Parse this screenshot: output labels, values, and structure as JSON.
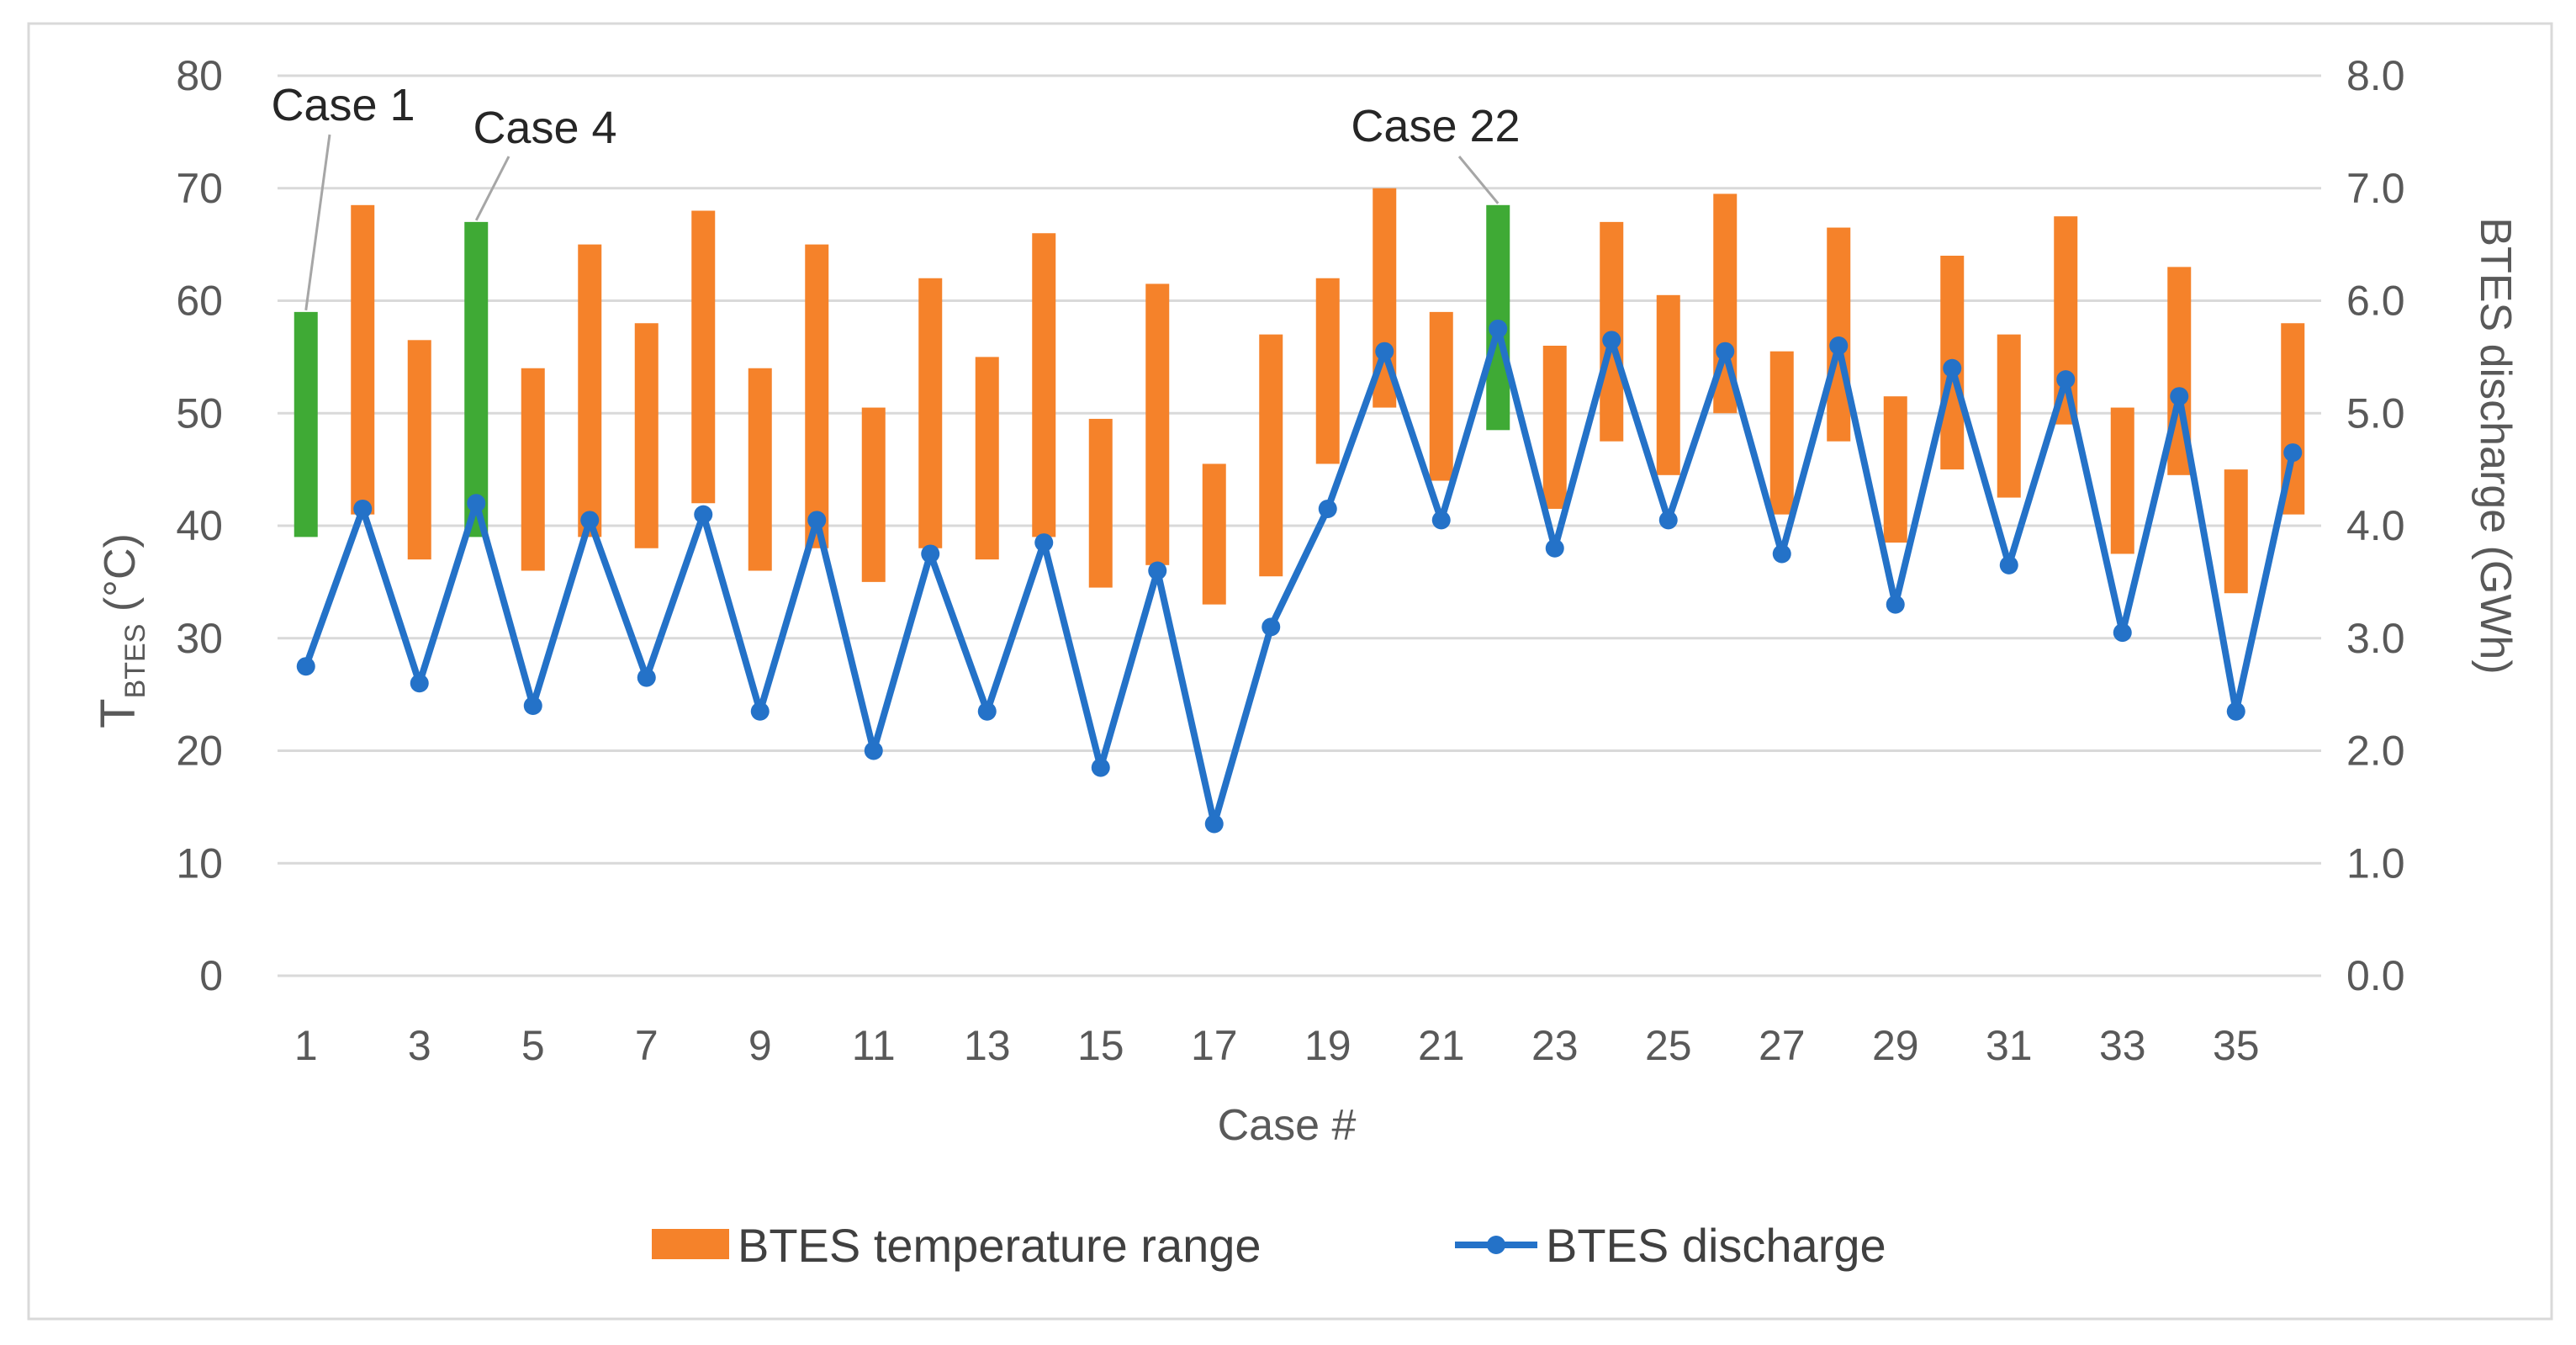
{
  "chart_data": {
    "type": "floating-bar + line (dual axis)",
    "x_axis": {
      "title": "Case #",
      "range": [
        1,
        36
      ],
      "tick_labels": [
        "1",
        "3",
        "5",
        "7",
        "9",
        "11",
        "13",
        "15",
        "17",
        "19",
        "21",
        "23",
        "25",
        "27",
        "29",
        "31",
        "33",
        "35"
      ]
    },
    "y_left": {
      "title_main": "T",
      "title_sub": "BTES",
      "title_unit": " (°C)",
      "range": [
        0,
        80
      ],
      "tick_labels": [
        "0",
        "10",
        "20",
        "30",
        "40",
        "50",
        "60",
        "70",
        "80"
      ]
    },
    "y_right": {
      "title": "BTES discharge (GWh)",
      "range": [
        0,
        8
      ],
      "tick_labels": [
        "0.0",
        "1.0",
        "2.0",
        "3.0",
        "4.0",
        "5.0",
        "6.0",
        "7.0",
        "8.0"
      ]
    },
    "series": [
      {
        "name": "BTES temperature range",
        "kind": "range-bar",
        "axis": "left",
        "color": "#F5822A",
        "highlight_color": "#3FAA35",
        "highlight_cases": [
          1,
          4,
          22
        ],
        "ranges": [
          [
            39,
            59
          ],
          [
            41,
            68.5
          ],
          [
            37,
            56.5
          ],
          [
            39,
            67
          ],
          [
            36,
            54
          ],
          [
            39,
            65
          ],
          [
            38,
            58
          ],
          [
            42,
            68
          ],
          [
            36,
            54
          ],
          [
            38,
            65
          ],
          [
            35,
            50.5
          ],
          [
            38,
            62
          ],
          [
            37,
            55
          ],
          [
            39,
            66
          ],
          [
            34.5,
            49.5
          ],
          [
            36.5,
            61.5
          ],
          [
            33,
            45.5
          ],
          [
            35.5,
            57
          ],
          [
            45.5,
            62
          ],
          [
            50.5,
            70
          ],
          [
            44,
            59
          ],
          [
            48.5,
            68.5
          ],
          [
            41.5,
            56
          ],
          [
            47.5,
            67
          ],
          [
            44.5,
            60.5
          ],
          [
            50,
            69.5
          ],
          [
            41,
            55.5
          ],
          [
            47.5,
            66.5
          ],
          [
            38.5,
            51.5
          ],
          [
            45,
            64
          ],
          [
            42.5,
            57
          ],
          [
            49,
            67.5
          ],
          [
            37.5,
            50.5
          ],
          [
            44.5,
            63
          ],
          [
            34,
            45
          ],
          [
            41,
            58
          ]
        ]
      },
      {
        "name": "BTES discharge",
        "kind": "line",
        "axis": "right",
        "color": "#2472C8",
        "values": [
          2.75,
          4.15,
          2.6,
          4.2,
          2.4,
          4.05,
          2.65,
          4.1,
          2.35,
          4.05,
          2.0,
          3.75,
          2.35,
          3.85,
          1.85,
          3.6,
          1.35,
          3.1,
          4.15,
          5.55,
          4.05,
          5.75,
          3.8,
          5.65,
          4.05,
          5.55,
          3.75,
          5.6,
          3.3,
          5.4,
          3.65,
          5.3,
          3.05,
          5.15,
          2.35,
          4.65
        ]
      }
    ],
    "annotations": [
      {
        "label": "Case 1",
        "case": 1
      },
      {
        "label": "Case 4",
        "case": 4
      },
      {
        "label": "Case 22",
        "case": 22
      }
    ],
    "legend": {
      "position": "bottom-center",
      "items": [
        "BTES temperature range",
        "BTES discharge"
      ]
    },
    "gridlines": true
  }
}
